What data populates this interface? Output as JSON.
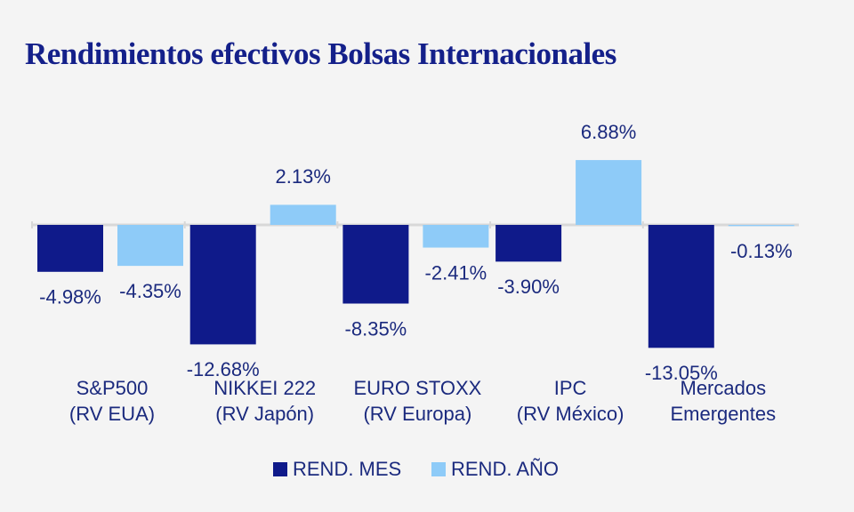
{
  "chart_data": {
    "type": "bar",
    "title": "Rendimientos efectivos Bolsas Internacionales",
    "categories": [
      [
        "S&P500",
        "(RV EUA)"
      ],
      [
        "NIKKEI 222",
        "(RV Japón)"
      ],
      [
        "EURO STOXX",
        "(RV Europa)"
      ],
      [
        "IPC",
        "(RV México)"
      ],
      [
        "Mercados",
        "Emergentes"
      ]
    ],
    "series": [
      {
        "name": "REND. MES",
        "color": "#0f1a8a",
        "values": [
          -4.98,
          -12.68,
          -8.35,
          -3.9,
          -13.05
        ],
        "value_labels": [
          "-4.98%",
          "-12.68%",
          "-8.35%",
          "-3.90%",
          "-13.05%"
        ]
      },
      {
        "name": "REND. AÑO",
        "color": "#8ecbf8",
        "values": [
          -4.35,
          2.13,
          -2.41,
          6.88,
          -0.13
        ],
        "value_labels": [
          "-4.35%",
          "2.13%",
          "-2.41%",
          "6.88%",
          "-0.13%"
        ]
      }
    ],
    "legend": "bottom"
  }
}
